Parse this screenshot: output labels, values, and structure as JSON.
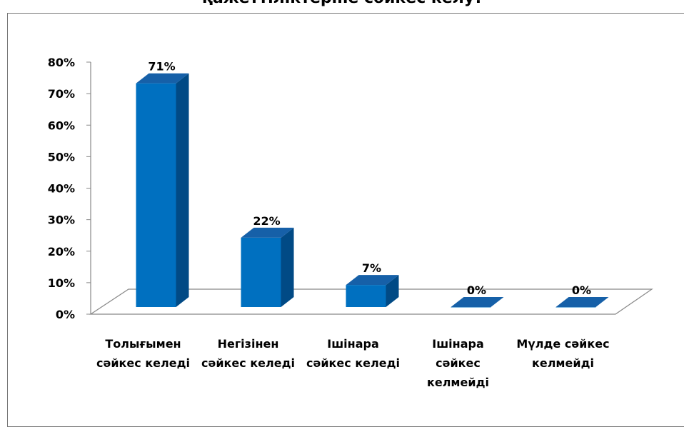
{
  "chart_data": {
    "type": "bar3d",
    "title": "қажеттіліктеріне сәйкес келу?",
    "categories": [
      "Толығымен сәйкес келеді",
      "Негізінен сәйкес келеді",
      "Ішінара сәйкес келеді",
      "Ішінара сәйкес келмейді",
      "Мүлде сәйкес келмейді"
    ],
    "values": [
      71,
      22,
      7,
      0,
      0
    ],
    "value_labels": [
      "71%",
      "22%",
      "7%",
      "0%",
      "0%"
    ],
    "color": "#0070c0",
    "ylim": [
      0,
      80
    ],
    "yticks": [
      {
        "value": 0,
        "label": "0%"
      },
      {
        "value": 10,
        "label": "10%"
      },
      {
        "value": 20,
        "label": "20%"
      },
      {
        "value": 30,
        "label": "30%"
      },
      {
        "value": 40,
        "label": "40%"
      },
      {
        "value": 50,
        "label": "50%"
      },
      {
        "value": 60,
        "label": "60%"
      },
      {
        "value": 70,
        "label": "70%"
      },
      {
        "value": 80,
        "label": "80%"
      }
    ]
  }
}
